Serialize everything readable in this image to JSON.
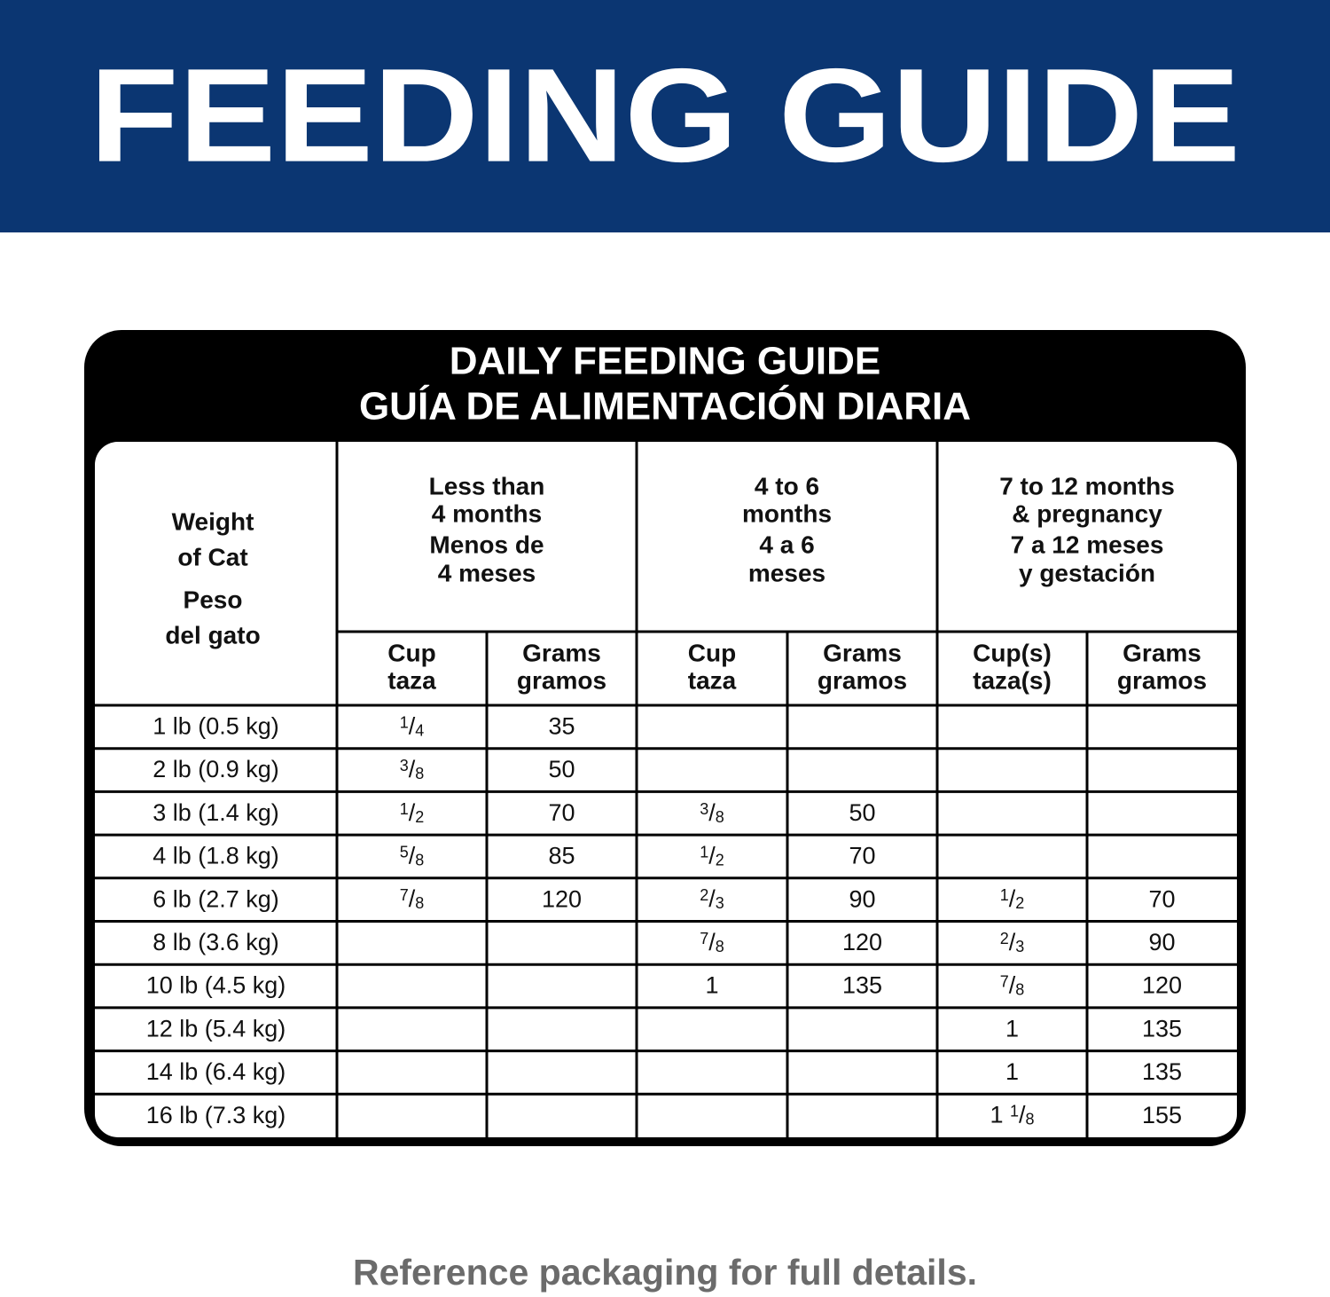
{
  "header": {
    "title": "FEEDING GUIDE"
  },
  "table": {
    "title": [
      "DAILY FEEDING GUIDE",
      "GUÍA DE ALIMENTACIÓN DIARIA"
    ],
    "weight_header": [
      "Weight",
      "of Cat",
      "Peso",
      "del gato"
    ],
    "groups": [
      {
        "label": [
          "Less than",
          "4 months",
          "Menos de",
          "4 meses"
        ],
        "columns": [
          [
            "Cup",
            "taza"
          ],
          [
            "Grams",
            "gramos"
          ]
        ]
      },
      {
        "label": [
          "4 to 6",
          "months",
          "4 a 6",
          "meses"
        ],
        "columns": [
          [
            "Cup",
            "taza"
          ],
          [
            "Grams",
            "gramos"
          ]
        ]
      },
      {
        "label": [
          "7 to 12 months",
          "& pregnancy",
          "7 a 12 meses",
          "y gestación"
        ],
        "columns": [
          [
            "Cup(s)",
            "taza(s)"
          ],
          [
            "Grams",
            "gramos"
          ]
        ]
      }
    ],
    "rows": [
      [
        "1 lb (0.5 kg)",
        "1/4",
        35,
        null,
        null,
        null,
        null
      ],
      [
        "2 lb (0.9 kg)",
        "3/8",
        50,
        null,
        null,
        null,
        null
      ],
      [
        "3 lb (1.4 kg)",
        "1/2",
        70,
        "3/8",
        50,
        null,
        null
      ],
      [
        "4 lb (1.8 kg)",
        "5/8",
        85,
        "1/2",
        70,
        null,
        null
      ],
      [
        "6 lb (2.7 kg)",
        "7/8",
        120,
        "2/3",
        90,
        "1/2",
        70
      ],
      [
        "8 lb (3.6 kg)",
        null,
        null,
        "7/8",
        120,
        "2/3",
        90
      ],
      [
        "10 lb (4.5 kg)",
        null,
        null,
        "1",
        135,
        "7/8",
        120
      ],
      [
        "12 lb (5.4 kg)",
        null,
        null,
        null,
        null,
        "1",
        135
      ],
      [
        "14 lb (6.4 kg)",
        null,
        null,
        null,
        null,
        "1",
        135
      ],
      [
        "16 lb (7.3 kg)",
        null,
        null,
        null,
        null,
        "1 1/8",
        155
      ]
    ]
  },
  "footer": {
    "note": "Reference packaging for full details."
  }
}
